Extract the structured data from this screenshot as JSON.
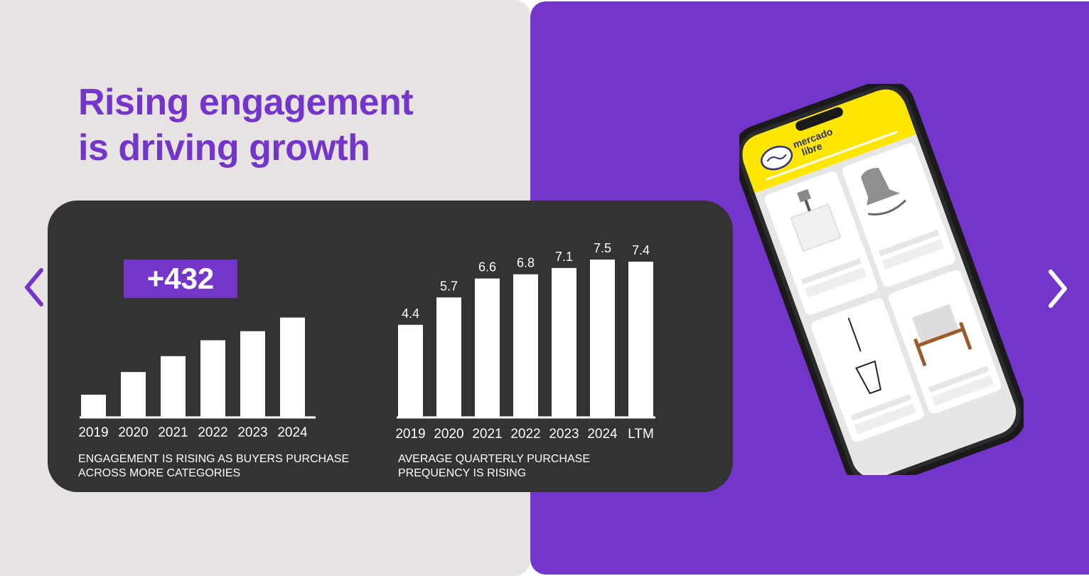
{
  "headline": {
    "line1": "Rising engagement",
    "line2": "is driving growth"
  },
  "colors": {
    "purple": "#7435cb",
    "dark": "#333333",
    "light": "#e8e3e3",
    "yellow": "#ffe600"
  },
  "nav": {
    "prev_icon": "chevron-left-icon",
    "next_icon": "chevron-right-icon"
  },
  "badge": {
    "value": "+432"
  },
  "captions": {
    "left_line1": "ENGAGEMENT IS RISING AS BUYERS PURCHASE",
    "left_line2": "ACROSS MORE CATEGORIES",
    "right_line1": "AVERAGE QUARTERLY PURCHASE",
    "right_line2": "PREQUENCY IS RISING"
  },
  "phone": {
    "brand_line1": "mercado",
    "brand_line2": "libre",
    "icon": "handshake-icon"
  },
  "chart_data": [
    {
      "type": "bar",
      "categories": [
        "2019",
        "2020",
        "2021",
        "2022",
        "2023",
        "2024"
      ],
      "values": [
        1,
        2,
        2.7,
        3.4,
        3.8,
        4.4
      ],
      "ylim": [
        0,
        4.7
      ],
      "title": "",
      "xlabel": "",
      "ylabel": "",
      "grid": false
    },
    {
      "type": "bar",
      "categories": [
        "2019",
        "2020",
        "2021",
        "2022",
        "2023",
        "2024",
        "LTM"
      ],
      "values": [
        4.4,
        5.7,
        6.6,
        6.8,
        7.1,
        7.5,
        7.4
      ],
      "data_labels": [
        "4.4",
        "5.7",
        "6.6",
        "6.8",
        "7.1",
        "7.5",
        "7.4"
      ],
      "title": "",
      "xlabel": "",
      "ylabel": "",
      "grid": false
    }
  ]
}
